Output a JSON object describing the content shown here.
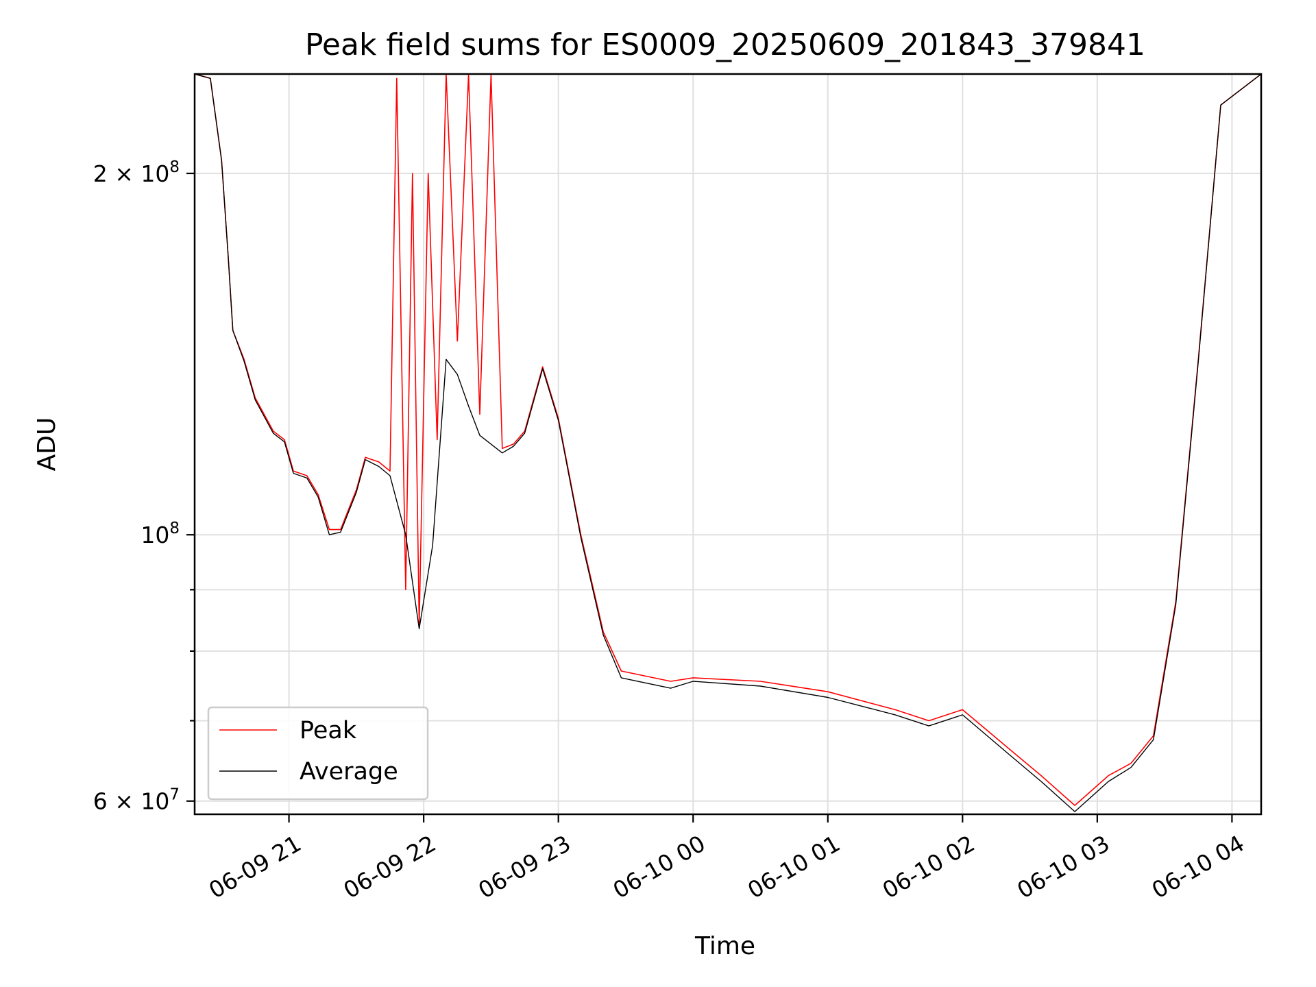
{
  "chart_data": {
    "type": "line",
    "title": "Peak field sums for ES0009_20250609_201843_379841",
    "xlabel": "Time",
    "ylabel": "ADU",
    "y_scale": "log",
    "grid": true,
    "legend_position": "lower-left",
    "x_range": [
      "2025-06-09 20:18",
      "2025-06-10 04:13"
    ],
    "y_range": [
      58500000,
      242000000
    ],
    "x_ticks": [
      {
        "value": "2025-06-09 21:00",
        "label": "06-09 21"
      },
      {
        "value": "2025-06-09 22:00",
        "label": "06-09 22"
      },
      {
        "value": "2025-06-09 23:00",
        "label": "06-09 23"
      },
      {
        "value": "2025-06-10 00:00",
        "label": "06-10 00"
      },
      {
        "value": "2025-06-10 01:00",
        "label": "06-10 01"
      },
      {
        "value": "2025-06-10 02:00",
        "label": "06-10 02"
      },
      {
        "value": "2025-06-10 03:00",
        "label": "06-10 03"
      },
      {
        "value": "2025-06-10 04:00",
        "label": "06-10 04"
      }
    ],
    "y_ticks_major": [
      {
        "value": 60000000,
        "label_mantissa": "6 × 10",
        "label_exp": "7"
      },
      {
        "value": 100000000,
        "label_mantissa": "10",
        "label_exp": "8"
      },
      {
        "value": 200000000,
        "label_mantissa": "2 × 10",
        "label_exp": "8"
      }
    ],
    "y_ticks_minor": [
      70000000,
      80000000,
      90000000
    ],
    "series": [
      {
        "name": "Peak",
        "color": "#ff0000",
        "points": [
          [
            "2025-06-09 20:18",
            242000000
          ],
          [
            "2025-06-09 20:25",
            240000000
          ],
          [
            "2025-06-09 20:30",
            205000000
          ],
          [
            "2025-06-09 20:33",
            170000000
          ],
          [
            "2025-06-09 20:35",
            148000000
          ],
          [
            "2025-06-09 20:40",
            140000000
          ],
          [
            "2025-06-09 20:45",
            130000000
          ],
          [
            "2025-06-09 20:53",
            122000000
          ],
          [
            "2025-06-09 20:58",
            120000000
          ],
          [
            "2025-06-09 21:02",
            113000000
          ],
          [
            "2025-06-09 21:08",
            112000000
          ],
          [
            "2025-06-09 21:13",
            108000000
          ],
          [
            "2025-06-09 21:18",
            101000000
          ],
          [
            "2025-06-09 21:23",
            101000000
          ],
          [
            "2025-06-09 21:30",
            109000000
          ],
          [
            "2025-06-09 21:34",
            116000000
          ],
          [
            "2025-06-09 21:40",
            115000000
          ],
          [
            "2025-06-09 21:45",
            113000000
          ],
          [
            "2025-06-09 21:48",
            240000000
          ],
          [
            "2025-06-09 21:52",
            90000000
          ],
          [
            "2025-06-09 21:55",
            200000000
          ],
          [
            "2025-06-09 21:58",
            84000000
          ],
          [
            "2025-06-09 22:02",
            200000000
          ],
          [
            "2025-06-09 22:06",
            120000000
          ],
          [
            "2025-06-09 22:10",
            242000000
          ],
          [
            "2025-06-09 22:15",
            145000000
          ],
          [
            "2025-06-09 22:20",
            242000000
          ],
          [
            "2025-06-09 22:25",
            126000000
          ],
          [
            "2025-06-09 22:30",
            242000000
          ],
          [
            "2025-06-09 22:35",
            118000000
          ],
          [
            "2025-06-09 22:40",
            119000000
          ],
          [
            "2025-06-09 22:45",
            122000000
          ],
          [
            "2025-06-09 22:53",
            138000000
          ],
          [
            "2025-06-09 23:00",
            125000000
          ],
          [
            "2025-06-09 23:10",
            100000000
          ],
          [
            "2025-06-09 23:20",
            83000000
          ],
          [
            "2025-06-09 23:28",
            77000000
          ],
          [
            "2025-06-09 23:50",
            75500000
          ],
          [
            "2025-06-10 00:00",
            76000000
          ],
          [
            "2025-06-10 00:30",
            75500000
          ],
          [
            "2025-06-10 01:00",
            74000000
          ],
          [
            "2025-06-10 01:30",
            71500000
          ],
          [
            "2025-06-10 01:45",
            70000000
          ],
          [
            "2025-06-10 02:00",
            71500000
          ],
          [
            "2025-06-10 02:20",
            66500000
          ],
          [
            "2025-06-10 02:35",
            63000000
          ],
          [
            "2025-06-10 02:50",
            59500000
          ],
          [
            "2025-06-10 03:05",
            63000000
          ],
          [
            "2025-06-10 03:15",
            64500000
          ],
          [
            "2025-06-10 03:25",
            68000000
          ],
          [
            "2025-06-10 03:35",
            88000000
          ],
          [
            "2025-06-10 03:45",
            140000000
          ],
          [
            "2025-06-10 03:55",
            228000000
          ],
          [
            "2025-06-10 04:13",
            242000000
          ]
        ]
      },
      {
        "name": "Average",
        "color": "#000000",
        "points": [
          [
            "2025-06-09 20:18",
            242000000
          ],
          [
            "2025-06-09 20:25",
            240000000
          ],
          [
            "2025-06-09 20:30",
            205000000
          ],
          [
            "2025-06-09 20:33",
            170000000
          ],
          [
            "2025-06-09 20:35",
            148000000
          ],
          [
            "2025-06-09 20:40",
            139500000
          ],
          [
            "2025-06-09 20:45",
            129500000
          ],
          [
            "2025-06-09 20:53",
            121500000
          ],
          [
            "2025-06-09 20:58",
            119500000
          ],
          [
            "2025-06-09 21:02",
            112500000
          ],
          [
            "2025-06-09 21:08",
            111500000
          ],
          [
            "2025-06-09 21:13",
            107500000
          ],
          [
            "2025-06-09 21:18",
            100000000
          ],
          [
            "2025-06-09 21:23",
            100500000
          ],
          [
            "2025-06-09 21:30",
            108500000
          ],
          [
            "2025-06-09 21:34",
            115500000
          ],
          [
            "2025-06-09 21:40",
            114000000
          ],
          [
            "2025-06-09 21:45",
            112000000
          ],
          [
            "2025-06-09 21:52",
            100000000
          ],
          [
            "2025-06-09 21:58",
            83500000
          ],
          [
            "2025-06-09 22:04",
            98000000
          ],
          [
            "2025-06-09 22:10",
            140000000
          ],
          [
            "2025-06-09 22:15",
            136000000
          ],
          [
            "2025-06-09 22:20",
            128000000
          ],
          [
            "2025-06-09 22:25",
            121000000
          ],
          [
            "2025-06-09 22:35",
            117000000
          ],
          [
            "2025-06-09 22:40",
            118500000
          ],
          [
            "2025-06-09 22:45",
            121500000
          ],
          [
            "2025-06-09 22:53",
            137500000
          ],
          [
            "2025-06-09 23:00",
            124500000
          ],
          [
            "2025-06-09 23:10",
            99500000
          ],
          [
            "2025-06-09 23:20",
            82500000
          ],
          [
            "2025-06-09 23:28",
            76000000
          ],
          [
            "2025-06-09 23:50",
            74500000
          ],
          [
            "2025-06-10 00:00",
            75500000
          ],
          [
            "2025-06-10 00:30",
            74800000
          ],
          [
            "2025-06-10 01:00",
            73200000
          ],
          [
            "2025-06-10 01:30",
            70800000
          ],
          [
            "2025-06-10 01:45",
            69300000
          ],
          [
            "2025-06-10 02:00",
            70800000
          ],
          [
            "2025-06-10 02:20",
            65800000
          ],
          [
            "2025-06-10 02:35",
            62300000
          ],
          [
            "2025-06-10 02:50",
            58800000
          ],
          [
            "2025-06-10 03:05",
            62300000
          ],
          [
            "2025-06-10 03:15",
            64000000
          ],
          [
            "2025-06-10 03:25",
            67500000
          ],
          [
            "2025-06-10 03:35",
            87500000
          ],
          [
            "2025-06-10 03:45",
            139500000
          ],
          [
            "2025-06-10 03:55",
            228000000
          ],
          [
            "2025-06-10 04:13",
            242000000
          ]
        ]
      }
    ]
  }
}
